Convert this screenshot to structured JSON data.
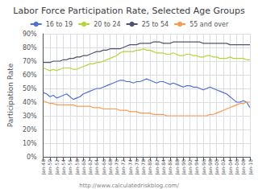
{
  "chart_data": {
    "type": "line",
    "title": "Labor Force Participation Rate, Selected Age Groups",
    "ylabel": "Participation Rate",
    "annotations": [
      "http://www.calculatedriskblog.com/"
    ],
    "categories": [
      "Jan-48",
      null,
      "Jan-50",
      null,
      "Jan-52",
      null,
      "Jan-54",
      null,
      "Jan-56",
      null,
      "Jan-58",
      null,
      "Jan-60",
      null,
      "Jan-62",
      null,
      "Jan-64",
      null,
      "Jan-66",
      null,
      "Jan-68",
      null,
      "Jan-70",
      null,
      "Jan-72",
      null,
      "Jan-74",
      null,
      "Jan-76",
      null,
      "Jan-78",
      null,
      "Jan-80",
      null,
      "Jan-82",
      null,
      "Jan-84",
      null,
      "Jan-86",
      null,
      "Jan-88",
      null,
      "Jan-90",
      null,
      "Jan-92",
      null,
      "Jan-94",
      null,
      "Jan-96",
      null,
      "Jan-98",
      null,
      "Jan-00",
      null,
      "Jan-02",
      null,
      "Jan-04",
      null,
      "Jan-06",
      null,
      "Jan-08",
      null,
      "Jan-10"
    ],
    "series": [
      {
        "name": "16 to 19",
        "values": [
          47,
          46,
          44,
          45,
          43,
          44,
          45,
          46,
          44,
          42,
          43,
          44,
          46,
          47,
          48,
          49,
          50,
          50,
          51,
          52,
          53,
          54,
          55,
          56,
          56,
          55,
          55,
          54,
          55,
          55,
          56,
          57,
          56,
          55,
          54,
          55,
          55,
          54,
          53,
          54,
          53,
          52,
          51,
          52,
          52,
          51,
          51,
          50,
          49,
          50,
          51,
          50,
          49,
          48,
          47,
          46,
          44,
          42,
          40,
          40,
          41,
          40,
          36
        ]
      },
      {
        "name": "20 to 24",
        "values": [
          65,
          64,
          63,
          64,
          63,
          64,
          65,
          65,
          65,
          64,
          64,
          65,
          66,
          67,
          68,
          68,
          69,
          69,
          70,
          71,
          72,
          73,
          74,
          76,
          77,
          77,
          77,
          77,
          78,
          78,
          79,
          78,
          78,
          77,
          76,
          76,
          76,
          75,
          75,
          76,
          75,
          74,
          74,
          75,
          75,
          74,
          74,
          73,
          73,
          74,
          74,
          73,
          73,
          72,
          72,
          72,
          73,
          72,
          72,
          72,
          72,
          71,
          71
        ]
      },
      {
        "name": "25 to 54",
        "values": [
          69,
          69,
          69,
          70,
          70,
          70,
          71,
          71,
          72,
          72,
          73,
          73,
          74,
          74,
          75,
          76,
          77,
          77,
          78,
          78,
          79,
          79,
          79,
          79,
          80,
          81,
          82,
          82,
          82,
          83,
          83,
          83,
          83,
          84,
          84,
          84,
          83,
          83,
          83,
          84,
          84,
          84,
          84,
          84,
          84,
          84,
          84,
          84,
          83,
          83,
          83,
          83,
          83,
          83,
          83,
          83,
          82,
          82,
          82,
          82,
          82,
          82,
          82
        ]
      },
      {
        "name": "55 and over",
        "values": [
          41,
          40,
          39,
          39,
          38,
          38,
          38,
          38,
          38,
          38,
          37,
          37,
          37,
          37,
          37,
          36,
          36,
          36,
          35,
          35,
          35,
          35,
          35,
          34,
          34,
          34,
          33,
          33,
          33,
          32,
          32,
          32,
          32,
          31,
          31,
          31,
          31,
          30,
          30,
          30,
          30,
          30,
          30,
          30,
          30,
          30,
          30,
          30,
          30,
          30,
          31,
          31,
          32,
          33,
          34,
          35,
          36,
          37,
          38,
          39,
          39,
          40,
          40
        ]
      }
    ],
    "ylim": [
      0,
      90
    ],
    "yticks": [
      {
        "value": 0,
        "label": "0%"
      },
      {
        "value": 10,
        "label": "10%"
      },
      {
        "value": 20,
        "label": "20%"
      },
      {
        "value": 30,
        "label": "30%"
      },
      {
        "value": 40,
        "label": "40%"
      },
      {
        "value": 50,
        "label": "50%"
      },
      {
        "value": 60,
        "label": "60%"
      },
      {
        "value": 70,
        "label": "70%"
      },
      {
        "value": 80,
        "label": "80%"
      },
      {
        "value": 90,
        "label": "90%"
      }
    ],
    "grid": true,
    "legend": "top"
  }
}
